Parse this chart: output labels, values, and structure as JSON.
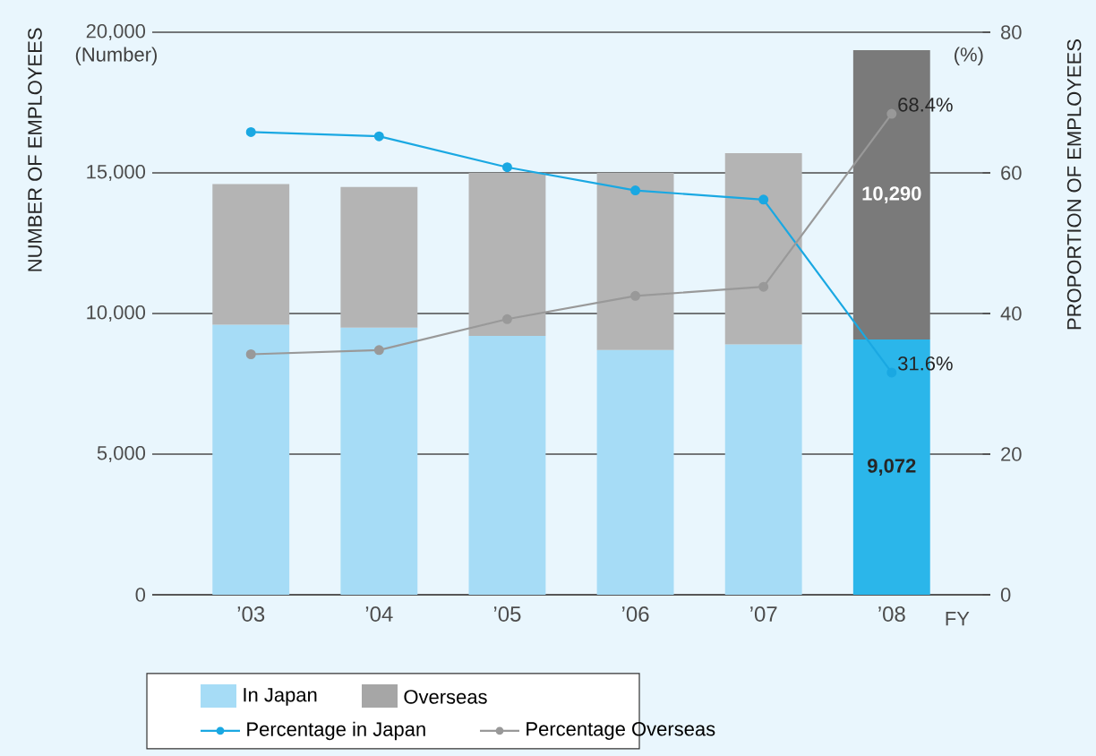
{
  "chart_data": {
    "type": "bar",
    "stacked": true,
    "ylabel": "NUMBER OF EMPLOYEES",
    "y2label": "PROPORTION OF EMPLOYEES",
    "xlabel": "FY",
    "annotations": [
      "(Number)",
      "(%)"
    ],
    "categories": [
      "’03",
      "’04",
      "’05",
      "’06",
      "’07",
      "’08"
    ],
    "series": [
      {
        "name": "In Japan",
        "color": "#a6dcf6",
        "colors": [
          "#a6dcf6",
          "#a6dcf6",
          "#a6dcf6",
          "#a6dcf6",
          "#a6dcf6",
          "#2bb6ea"
        ],
        "values": [
          9600,
          9500,
          9200,
          8700,
          8900,
          9072
        ],
        "value_labels": [
          null,
          null,
          null,
          null,
          null,
          "9,072"
        ]
      },
      {
        "name": "Overseas",
        "color": "#a6a6a6",
        "colors": [
          "#b4b4b4",
          "#b4b4b4",
          "#b4b4b4",
          "#b4b4b4",
          "#b4b4b4",
          "#7a7a7a"
        ],
        "values": [
          5000,
          5000,
          5800,
          6300,
          6800,
          10290
        ],
        "value_labels": [
          null,
          null,
          null,
          null,
          null,
          "10,290"
        ]
      },
      {
        "name": "Percentage in Japan",
        "type": "line",
        "axis": "y2",
        "color": "#1aa8e2",
        "marker": "circle",
        "line_style": "solid",
        "values": [
          65.8,
          65.2,
          60.8,
          57.5,
          56.2,
          31.6
        ],
        "value_labels": [
          null,
          null,
          null,
          null,
          null,
          "31.6%"
        ]
      },
      {
        "name": "Percentage Overseas",
        "type": "line",
        "axis": "y2",
        "color": "#999999",
        "marker": "circle",
        "line_style": "solid",
        "values": [
          34.2,
          34.8,
          39.2,
          42.5,
          43.8,
          68.4
        ],
        "value_labels": [
          null,
          null,
          null,
          null,
          null,
          "68.4%"
        ]
      }
    ],
    "ylim": [
      0,
      20000
    ],
    "yticks": [
      0,
      {
        "value": 5000,
        "label": "5,000"
      },
      {
        "value": 10000,
        "label": "10,000"
      },
      {
        "value": 15000,
        "label": "15,000"
      },
      {
        "value": 20000,
        "label": "20,000"
      }
    ],
    "y2lim": [
      0,
      80
    ],
    "y2ticks": [
      0,
      20,
      40,
      60,
      80
    ],
    "grid": "y",
    "legend": "bottom"
  }
}
